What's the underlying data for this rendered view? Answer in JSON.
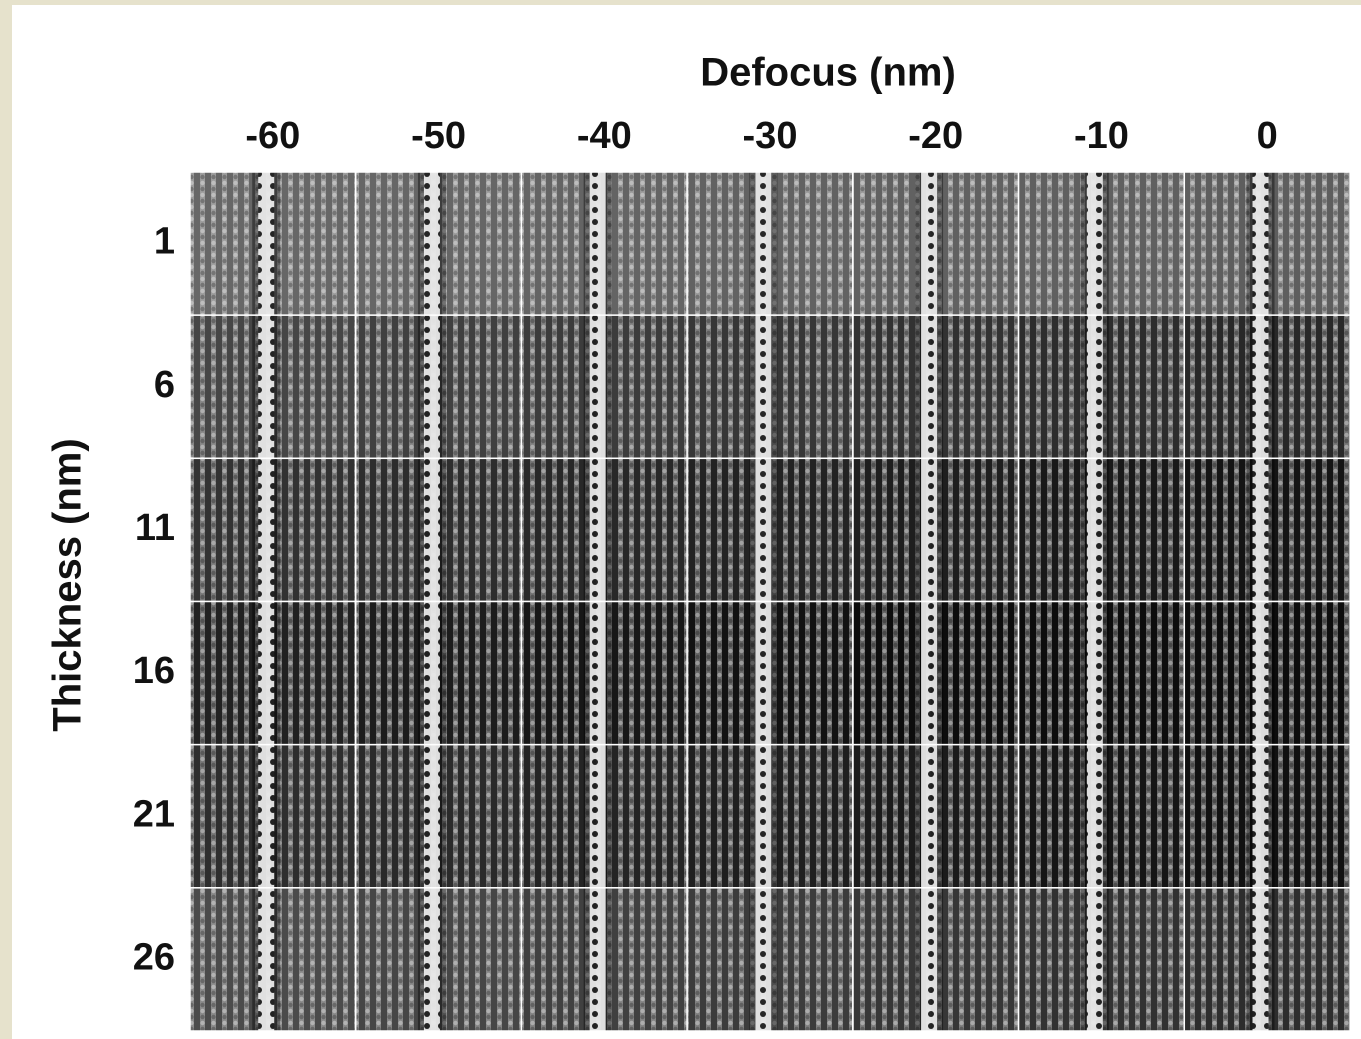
{
  "header": {
    "title": "Defocus (nm)",
    "y_title": "Thickness (nm)"
  },
  "columns": [
    "-60",
    "-50",
    "-40",
    "-30",
    "-20",
    "-10",
    "0"
  ],
  "rows": [
    "1",
    "6",
    "11",
    "16",
    "21",
    "26"
  ]
}
